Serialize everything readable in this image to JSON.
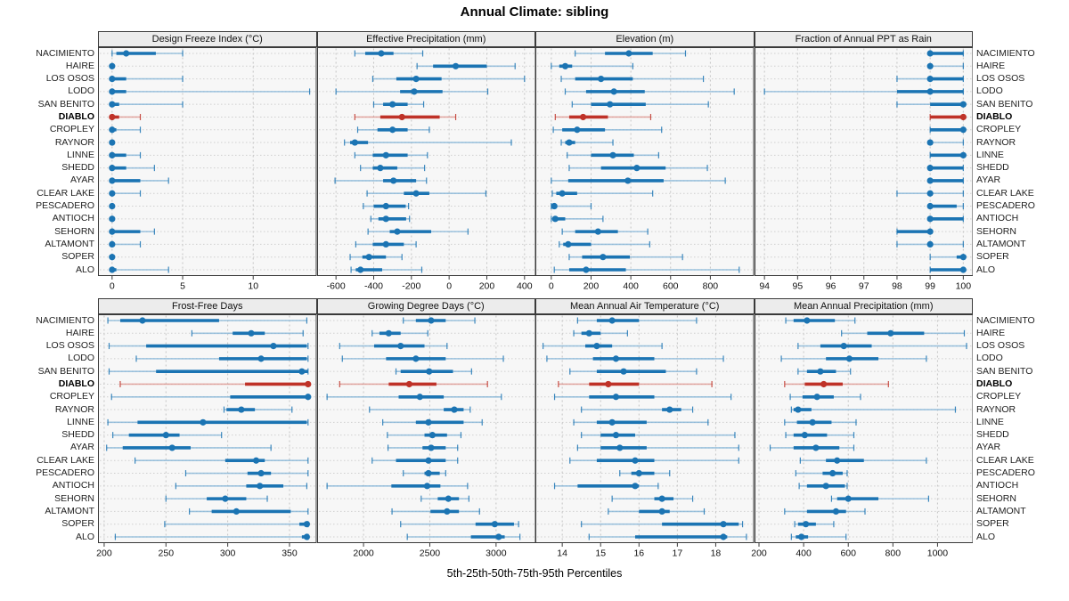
{
  "title": "Annual Climate: sibling",
  "footer": "5th-25th-50th-75th-95th Percentiles",
  "percentile_legend": [
    "5th",
    "25th",
    "50th",
    "75th",
    "95th"
  ],
  "highlight_site": "DIABLO",
  "sites": [
    "NACIMIENTO",
    "HAIRE",
    "LOS OSOS",
    "LODO",
    "SAN BENITO",
    "DIABLO",
    "CROPLEY",
    "RAYNOR",
    "LINNE",
    "SHEDD",
    "AYAR",
    "CLEAR LAKE",
    "PESCADERO",
    "ANTIOCH",
    "SEHORN",
    "ALTAMONT",
    "SOPER",
    "ALO"
  ],
  "colors": {
    "blue": "#1b74b3",
    "blue_light": "#7fb2d6",
    "red": "#bf3228",
    "red_light": "#dd9089",
    "strip_bg": "#ececec",
    "plot_bg": "#f7f7f7",
    "grid": "#c4c4c4",
    "row_guide": "#cfcfcf",
    "border": "#3a3a3a"
  },
  "chart_data": [
    {
      "type": "dot-interval",
      "title": "Design Freeze Index (°C)",
      "xlim": [
        -1,
        14.5
      ],
      "ticks": [
        0,
        5,
        10
      ],
      "values": [
        [
          0,
          0.3,
          1,
          3.1,
          5
        ],
        [
          0,
          0,
          0,
          0,
          0
        ],
        [
          0,
          0,
          0,
          1,
          5
        ],
        [
          0,
          0,
          0,
          1,
          14
        ],
        [
          0,
          0,
          0,
          0.5,
          5
        ],
        [
          0,
          0,
          0,
          0.5,
          2
        ],
        [
          0,
          0,
          0,
          0.3,
          2
        ],
        [
          0,
          0,
          0,
          0,
          0
        ],
        [
          0,
          0,
          0,
          1,
          2
        ],
        [
          0,
          0,
          0,
          1,
          3
        ],
        [
          0,
          0,
          0,
          2,
          4
        ],
        [
          0,
          0,
          0,
          0.2,
          2
        ],
        [
          0,
          0,
          0,
          0,
          0
        ],
        [
          0,
          0,
          0,
          0,
          0
        ],
        [
          0,
          0,
          0,
          2,
          3
        ],
        [
          0,
          0,
          0,
          0.2,
          2
        ],
        [
          0,
          0,
          0,
          0,
          0
        ],
        [
          0,
          0,
          0,
          0.3,
          4
        ]
      ]
    },
    {
      "type": "dot-interval",
      "title": "Effective Precipitation (mm)",
      "xlim": [
        -700,
        460
      ],
      "ticks": [
        -600,
        -400,
        -200,
        0,
        200,
        400
      ],
      "values": [
        [
          -500,
          -445,
          -360,
          -295,
          -140
        ],
        [
          -170,
          -85,
          35,
          200,
          350
        ],
        [
          -405,
          -280,
          -175,
          -40,
          400
        ],
        [
          -600,
          -260,
          -185,
          -35,
          205
        ],
        [
          -400,
          -350,
          -300,
          -220,
          -135
        ],
        [
          -500,
          -365,
          -250,
          -50,
          35
        ],
        [
          -485,
          -380,
          -300,
          -220,
          -105
        ],
        [
          -555,
          -525,
          -500,
          -430,
          330
        ],
        [
          -500,
          -405,
          -335,
          -220,
          -115
        ],
        [
          -470,
          -405,
          -365,
          -275,
          -130
        ],
        [
          -605,
          -350,
          -295,
          -175,
          -120
        ],
        [
          -435,
          -240,
          -175,
          -105,
          195
        ],
        [
          -455,
          -400,
          -335,
          -230,
          -215
        ],
        [
          -415,
          -375,
          -335,
          -228,
          -210
        ],
        [
          -430,
          -315,
          -275,
          -95,
          100
        ],
        [
          -495,
          -405,
          -335,
          -240,
          -175
        ],
        [
          -525,
          -460,
          -425,
          -335,
          -250
        ],
        [
          -520,
          -495,
          -470,
          -355,
          -145
        ]
      ]
    },
    {
      "type": "dot-interval",
      "title": "Elevation (m)",
      "xlim": [
        -80,
        1020
      ],
      "ticks": [
        0,
        200,
        400,
        600,
        800
      ],
      "values": [
        [
          120,
          270,
          390,
          510,
          675
        ],
        [
          0,
          40,
          70,
          105,
          410
        ],
        [
          50,
          120,
          250,
          410,
          765
        ],
        [
          70,
          175,
          315,
          470,
          920
        ],
        [
          105,
          200,
          295,
          475,
          790
        ],
        [
          20,
          90,
          160,
          285,
          500
        ],
        [
          10,
          55,
          130,
          270,
          555
        ],
        [
          50,
          70,
          90,
          120,
          310
        ],
        [
          80,
          200,
          310,
          415,
          540
        ],
        [
          90,
          250,
          430,
          575,
          785
        ],
        [
          0,
          85,
          385,
          565,
          875
        ],
        [
          5,
          25,
          55,
          130,
          510
        ],
        [
          0,
          5,
          15,
          30,
          200
        ],
        [
          0,
          10,
          20,
          70,
          260
        ],
        [
          55,
          120,
          235,
          335,
          485
        ],
        [
          40,
          60,
          85,
          200,
          495
        ],
        [
          90,
          155,
          260,
          395,
          660
        ],
        [
          15,
          90,
          175,
          375,
          945
        ]
      ]
    },
    {
      "type": "dot-interval",
      "title": "Fraction of Annual PPT as Rain",
      "xlim": [
        93.7,
        100.3
      ],
      "ticks": [
        94,
        95,
        96,
        97,
        98,
        99,
        100
      ],
      "values": [
        [
          99,
          99,
          99,
          100,
          100
        ],
        [
          99,
          99,
          99,
          99,
          100
        ],
        [
          98,
          99,
          99,
          100,
          100
        ],
        [
          94,
          98,
          99,
          100,
          100
        ],
        [
          98,
          99,
          100,
          100,
          100
        ],
        [
          99,
          99,
          100,
          100,
          100
        ],
        [
          99,
          99,
          100,
          100,
          100
        ],
        [
          99,
          99,
          99,
          99,
          100
        ],
        [
          99,
          99,
          100,
          100,
          100
        ],
        [
          99,
          99,
          99,
          100,
          100
        ],
        [
          99,
          99,
          99,
          100,
          100
        ],
        [
          98,
          99,
          99,
          99,
          100
        ],
        [
          99,
          99,
          99,
          99.8,
          100
        ],
        [
          99,
          99,
          99,
          100,
          100
        ],
        [
          98,
          98,
          99,
          99,
          99
        ],
        [
          98,
          99,
          99,
          99,
          100
        ],
        [
          99,
          99.8,
          100,
          100,
          100
        ],
        [
          99,
          99,
          100,
          100,
          100
        ]
      ]
    },
    {
      "type": "dot-interval",
      "title": "Frost-Free Days",
      "xlim": [
        195,
        372
      ],
      "ticks": [
        200,
        250,
        300,
        350
      ],
      "values": [
        [
          203,
          213,
          231,
          293,
          364
        ],
        [
          271,
          304,
          319,
          330,
          361
        ],
        [
          204,
          234,
          337,
          364,
          365
        ],
        [
          226,
          293,
          327,
          364,
          365
        ],
        [
          204,
          242,
          360,
          365,
          365
        ],
        [
          213,
          314,
          365,
          365,
          365
        ],
        [
          206,
          302,
          365,
          365,
          365
        ],
        [
          297,
          299,
          311,
          322,
          352
        ],
        [
          203,
          227,
          280,
          364,
          365
        ],
        [
          207,
          220,
          250,
          261,
          295
        ],
        [
          202,
          215,
          255,
          270,
          335
        ],
        [
          225,
          298,
          323,
          330,
          365
        ],
        [
          266,
          316,
          327,
          335,
          365
        ],
        [
          258,
          315,
          326,
          345,
          364
        ],
        [
          250,
          283,
          298,
          315,
          332
        ],
        [
          269,
          287,
          307,
          351,
          365
        ],
        [
          249,
          358,
          364,
          365,
          365
        ],
        [
          209,
          360,
          364,
          365,
          365
        ]
      ]
    },
    {
      "type": "dot-interval",
      "title": "Growing Degree Days (°C)",
      "xlim": [
        1650,
        3300
      ],
      "ticks": [
        2000,
        2500,
        3000
      ],
      "values": [
        [
          2300,
          2395,
          2510,
          2620,
          2840
        ],
        [
          2065,
          2120,
          2190,
          2280,
          2485
        ],
        [
          1820,
          2080,
          2280,
          2460,
          2630
        ],
        [
          1840,
          2170,
          2395,
          2620,
          3055
        ],
        [
          2245,
          2280,
          2495,
          2675,
          2815
        ],
        [
          1820,
          2190,
          2345,
          2550,
          2935
        ],
        [
          1725,
          2265,
          2425,
          2605,
          3040
        ],
        [
          2045,
          2605,
          2685,
          2755,
          2805
        ],
        [
          2145,
          2395,
          2490,
          2755,
          2895
        ],
        [
          2180,
          2460,
          2520,
          2630,
          2735
        ],
        [
          2185,
          2445,
          2510,
          2620,
          2710
        ],
        [
          2065,
          2245,
          2490,
          2620,
          2710
        ],
        [
          2300,
          2460,
          2490,
          2575,
          2620
        ],
        [
          1725,
          2210,
          2480,
          2580,
          2785
        ],
        [
          2435,
          2560,
          2640,
          2720,
          2795
        ],
        [
          2215,
          2505,
          2630,
          2720,
          2875
        ],
        [
          2280,
          2845,
          2990,
          3135,
          3170
        ],
        [
          2330,
          2810,
          3020,
          3065,
          3180
        ]
      ]
    },
    {
      "type": "dot-interval",
      "title": "Mean Annual Air Temperature (°C)",
      "xlim": [
        13.3,
        19.0
      ],
      "ticks": [
        14,
        15,
        16,
        17,
        18
      ],
      "values": [
        [
          14.4,
          14.9,
          15.3,
          16.0,
          17.5
        ],
        [
          14.3,
          14.5,
          14.7,
          15.0,
          15.7
        ],
        [
          13.5,
          14.6,
          14.9,
          15.3,
          16.6
        ],
        [
          13.6,
          14.8,
          15.4,
          16.4,
          18.2
        ],
        [
          14.2,
          14.9,
          15.6,
          16.7,
          17.5
        ],
        [
          13.9,
          14.7,
          15.2,
          16.0,
          17.9
        ],
        [
          13.8,
          14.7,
          15.4,
          16.4,
          18.4
        ],
        [
          14.5,
          16.6,
          16.8,
          17.1,
          17.4
        ],
        [
          14.3,
          14.9,
          15.3,
          16.2,
          17.8
        ],
        [
          14.5,
          15.0,
          15.4,
          15.9,
          18.5
        ],
        [
          14.4,
          15.0,
          15.5,
          16.2,
          18.6
        ],
        [
          14.2,
          14.9,
          15.9,
          16.4,
          18.6
        ],
        [
          15.5,
          15.8,
          16.0,
          16.4,
          16.8
        ],
        [
          13.8,
          14.4,
          15.9,
          16.0,
          16.5
        ],
        [
          15.3,
          16.4,
          16.6,
          16.9,
          17.4
        ],
        [
          15.2,
          16.0,
          16.6,
          16.8,
          17.7
        ],
        [
          14.5,
          16.6,
          18.2,
          18.6,
          18.7
        ],
        [
          14.7,
          15.9,
          18.2,
          18.3,
          18.8
        ]
      ]
    },
    {
      "type": "dot-interval",
      "title": "Mean Annual Precipitation (mm)",
      "xlim": [
        180,
        1160
      ],
      "ticks": [
        200,
        400,
        600,
        800,
        1000
      ],
      "values": [
        [
          320,
          355,
          415,
          540,
          630
        ],
        [
          570,
          685,
          790,
          940,
          1120
        ],
        [
          375,
          475,
          580,
          705,
          1130
        ],
        [
          300,
          500,
          605,
          735,
          950
        ],
        [
          375,
          415,
          475,
          545,
          610
        ],
        [
          315,
          405,
          490,
          575,
          780
        ],
        [
          340,
          395,
          460,
          535,
          655
        ],
        [
          345,
          355,
          375,
          435,
          1080
        ],
        [
          315,
          370,
          440,
          525,
          635
        ],
        [
          320,
          355,
          405,
          505,
          625
        ],
        [
          250,
          355,
          455,
          560,
          625
        ],
        [
          385,
          500,
          550,
          670,
          950
        ],
        [
          365,
          485,
          530,
          575,
          595
        ],
        [
          380,
          415,
          500,
          585,
          595
        ],
        [
          525,
          550,
          600,
          735,
          960
        ],
        [
          315,
          415,
          545,
          590,
          675
        ],
        [
          360,
          375,
          410,
          455,
          535
        ],
        [
          345,
          365,
          390,
          420,
          590
        ]
      ]
    }
  ]
}
